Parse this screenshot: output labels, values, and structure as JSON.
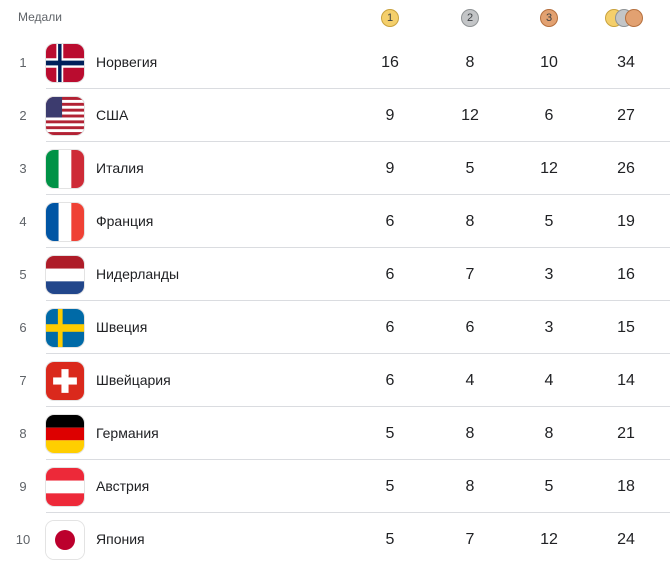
{
  "header": {
    "title": "Медали",
    "gold_label": "1",
    "silver_label": "2",
    "bronze_label": "3"
  },
  "colors": {
    "gold": "#f4cf6b",
    "silver": "#c3c5c7",
    "bronze": "#e2a171",
    "divider": "#dadce0"
  },
  "rows": [
    {
      "rank": "1",
      "country": "Норвегия",
      "flag": "norway-flag-icon",
      "gold": "16",
      "silver": "8",
      "bronze": "10",
      "total": "34"
    },
    {
      "rank": "2",
      "country": "США",
      "flag": "usa-flag-icon",
      "gold": "9",
      "silver": "12",
      "bronze": "6",
      "total": "27"
    },
    {
      "rank": "3",
      "country": "Италия",
      "flag": "italy-flag-icon",
      "gold": "9",
      "silver": "5",
      "bronze": "12",
      "total": "26"
    },
    {
      "rank": "4",
      "country": "Франция",
      "flag": "france-flag-icon",
      "gold": "6",
      "silver": "8",
      "bronze": "5",
      "total": "19"
    },
    {
      "rank": "5",
      "country": "Нидерланды",
      "flag": "netherlands-flag-icon",
      "gold": "6",
      "silver": "7",
      "bronze": "3",
      "total": "16"
    },
    {
      "rank": "6",
      "country": "Швеция",
      "flag": "sweden-flag-icon",
      "gold": "6",
      "silver": "6",
      "bronze": "3",
      "total": "15"
    },
    {
      "rank": "7",
      "country": "Швейцария",
      "flag": "switzerland-flag-icon",
      "gold": "6",
      "silver": "4",
      "bronze": "4",
      "total": "14"
    },
    {
      "rank": "8",
      "country": "Германия",
      "flag": "germany-flag-icon",
      "gold": "5",
      "silver": "8",
      "bronze": "8",
      "total": "21"
    },
    {
      "rank": "9",
      "country": "Австрия",
      "flag": "austria-flag-icon",
      "gold": "5",
      "silver": "8",
      "bronze": "5",
      "total": "18"
    },
    {
      "rank": "10",
      "country": "Япония",
      "flag": "japan-flag-icon",
      "gold": "5",
      "silver": "7",
      "bronze": "12",
      "total": "24"
    }
  ]
}
